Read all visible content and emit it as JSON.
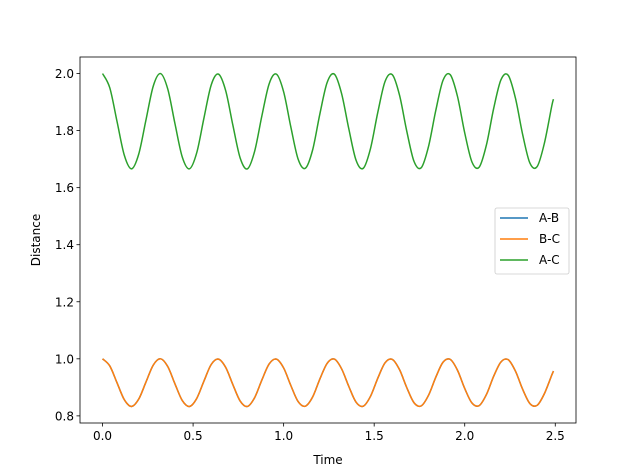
{
  "chart_data": {
    "type": "line",
    "title": "",
    "xlabel": "Time",
    "ylabel": "Distance",
    "xlim": [
      -0.1245,
      2.6145
    ],
    "ylim": [
      0.775,
      2.058
    ],
    "xticks": [
      0.0,
      0.5,
      1.0,
      1.5,
      2.0,
      2.5
    ],
    "xtick_labels": [
      "0.0",
      "0.5",
      "1.0",
      "1.5",
      "2.0",
      "2.5"
    ],
    "yticks": [
      0.8,
      1.0,
      1.2,
      1.4,
      1.6,
      1.8,
      2.0
    ],
    "ytick_labels": [
      "0.8",
      "1.0",
      "1.2",
      "1.4",
      "1.6",
      "1.8",
      "2.0"
    ],
    "grid": false,
    "legend_placement": "center right",
    "x": [
      0,
      0.04,
      0.08,
      0.12,
      0.16,
      0.2,
      0.24,
      0.28,
      0.32,
      0.36,
      0.4,
      0.44,
      0.48,
      0.52,
      0.56,
      0.6,
      0.64,
      0.68,
      0.72,
      0.76,
      0.8,
      0.84,
      0.88,
      0.92,
      0.96,
      1.0,
      1.04,
      1.08,
      1.12,
      1.16,
      1.2,
      1.24,
      1.28,
      1.32,
      1.36,
      1.4,
      1.44,
      1.48,
      1.52,
      1.56,
      1.6,
      1.64,
      1.68,
      1.72,
      1.76,
      1.8,
      1.84,
      1.88,
      1.92,
      1.96,
      2.0,
      2.04,
      2.08,
      2.12,
      2.16,
      2.2,
      2.24,
      2.28,
      2.32,
      2.36,
      2.4,
      2.44,
      2.48,
      2.49
    ],
    "series": [
      {
        "name": "A-B",
        "color": "#1f77b4",
        "values": [
          1.0,
          0.975,
          0.916,
          0.857,
          0.833,
          0.859,
          0.919,
          0.978,
          1.0,
          0.973,
          0.912,
          0.854,
          0.833,
          0.861,
          0.922,
          0.98,
          0.999,
          0.97,
          0.909,
          0.852,
          0.833,
          0.864,
          0.926,
          0.982,
          0.999,
          0.968,
          0.906,
          0.85,
          0.834,
          0.866,
          0.929,
          0.984,
          0.999,
          0.965,
          0.903,
          0.848,
          0.834,
          0.869,
          0.932,
          0.986,
          0.998,
          0.962,
          0.899,
          0.846,
          0.835,
          0.872,
          0.935,
          0.988,
          0.998,
          0.96,
          0.896,
          0.845,
          0.836,
          0.875,
          0.939,
          0.989,
          0.997,
          0.957,
          0.893,
          0.843,
          0.837,
          0.878,
          0.942,
          0.957
        ]
      },
      {
        "name": "B-C",
        "color": "#ff7f0e",
        "values": [
          1.0,
          0.975,
          0.916,
          0.857,
          0.833,
          0.859,
          0.919,
          0.978,
          1.0,
          0.973,
          0.912,
          0.854,
          0.833,
          0.861,
          0.922,
          0.98,
          0.999,
          0.97,
          0.909,
          0.852,
          0.833,
          0.864,
          0.926,
          0.982,
          0.999,
          0.968,
          0.906,
          0.85,
          0.834,
          0.866,
          0.929,
          0.984,
          0.999,
          0.965,
          0.903,
          0.848,
          0.834,
          0.869,
          0.932,
          0.986,
          0.998,
          0.962,
          0.899,
          0.846,
          0.835,
          0.872,
          0.935,
          0.988,
          0.998,
          0.96,
          0.896,
          0.845,
          0.836,
          0.875,
          0.939,
          0.989,
          0.997,
          0.957,
          0.893,
          0.843,
          0.837,
          0.878,
          0.942,
          0.957
        ]
      },
      {
        "name": "A-C",
        "color": "#2ca02c",
        "values": [
          2.0,
          1.95,
          1.832,
          1.714,
          1.666,
          1.718,
          1.838,
          1.956,
          2.0,
          1.946,
          1.824,
          1.708,
          1.666,
          1.722,
          1.844,
          1.96,
          1.998,
          1.94,
          1.818,
          1.704,
          1.666,
          1.728,
          1.852,
          1.964,
          1.998,
          1.936,
          1.812,
          1.7,
          1.668,
          1.732,
          1.858,
          1.968,
          1.998,
          1.93,
          1.806,
          1.696,
          1.668,
          1.738,
          1.864,
          1.972,
          1.996,
          1.924,
          1.798,
          1.692,
          1.67,
          1.744,
          1.87,
          1.976,
          1.996,
          1.92,
          1.792,
          1.69,
          1.672,
          1.75,
          1.878,
          1.978,
          1.994,
          1.914,
          1.786,
          1.686,
          1.674,
          1.756,
          1.884,
          1.91
        ]
      }
    ]
  }
}
